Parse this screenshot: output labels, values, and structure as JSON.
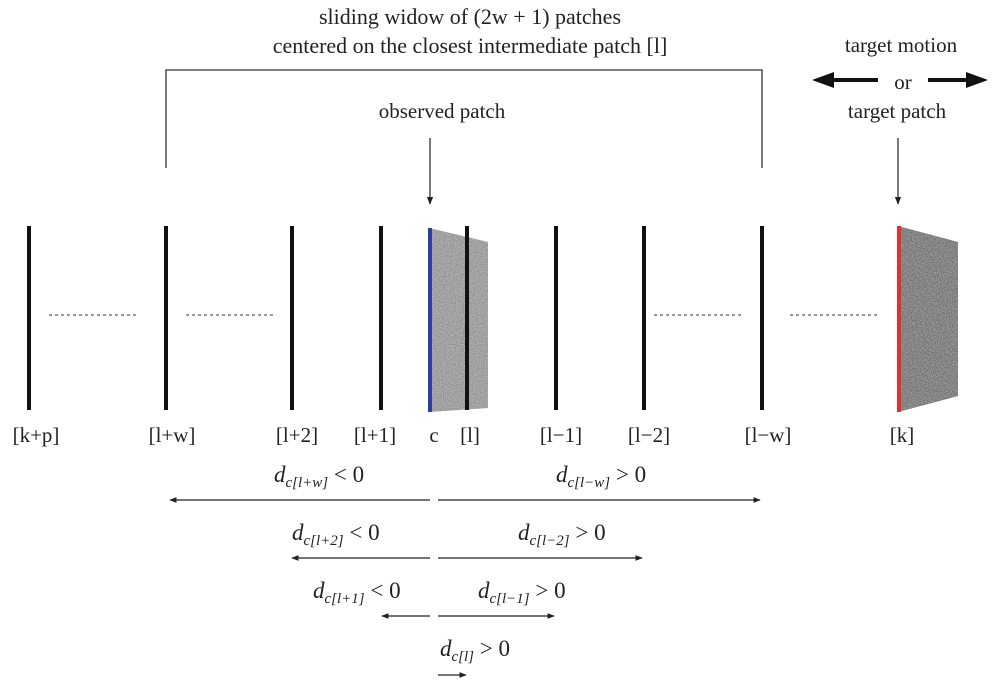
{
  "header": {
    "line1": "sliding widow of (2w + 1) patches",
    "line2": "centered on the closest intermediate patch [l]"
  },
  "observed": {
    "label": "observed patch"
  },
  "target": {
    "motion": "target motion",
    "or": "or",
    "patch": "target patch"
  },
  "patch_labels": [
    "[k+p]",
    "[l+w]",
    "[l+2]",
    "[l+1]",
    "c",
    "[l]",
    "[l−1]",
    "[l−2]",
    "[l−w]",
    "[k]"
  ],
  "distances": [
    {
      "sub": "c[l+w]",
      "rel": " < 0"
    },
    {
      "sub": "c[l−w]",
      "rel": " > 0"
    },
    {
      "sub": "c[l+2]",
      "rel": " < 0"
    },
    {
      "sub": "c[l−2]",
      "rel": " > 0"
    },
    {
      "sub": "c[l+1]",
      "rel": " < 0"
    },
    {
      "sub": "c[l−1]",
      "rel": " > 0"
    },
    {
      "sub": "c[l]",
      "rel": " > 0"
    }
  ],
  "colors": {
    "observed_edge": "#2b3f9e",
    "target_edge": "#e03030",
    "line": "#111111"
  }
}
